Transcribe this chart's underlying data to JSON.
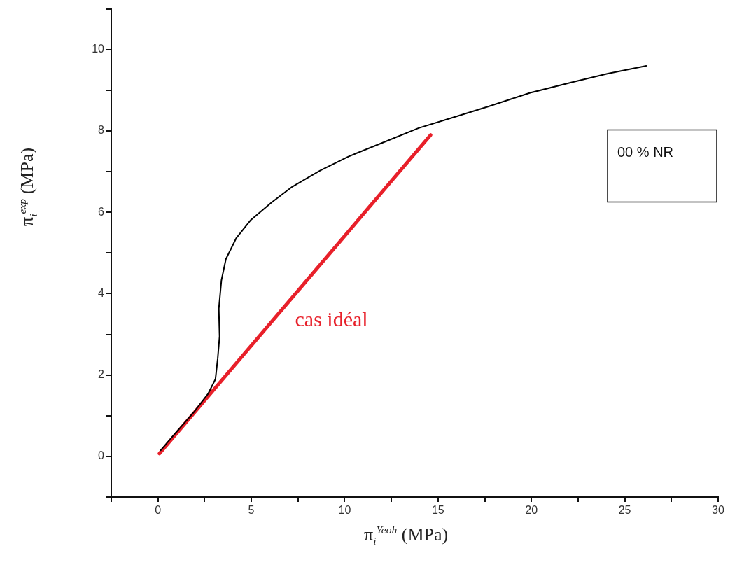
{
  "chart_data": {
    "type": "line",
    "xlabel": "π$_{i}$$^{Yeoh}$ (MPa)",
    "ylabel": "π$_{i}$$^{exp}$ (MPa)",
    "xlim": [
      -2.5,
      30
    ],
    "ylim": [
      -1,
      11
    ],
    "xticks": [
      {
        "value": -2.5,
        "label": null
      },
      0,
      {
        "value": 2.5,
        "label": null
      },
      5,
      {
        "value": 7.5,
        "label": null
      },
      10,
      {
        "value": 12.5,
        "label": null
      },
      15,
      {
        "value": 17.5,
        "label": null
      },
      20,
      {
        "value": 22.5,
        "label": null
      },
      25,
      {
        "value": 27.5,
        "label": null
      },
      30
    ],
    "yticks": [
      {
        "value": -1,
        "label": null
      },
      0,
      {
        "value": 1,
        "label": null
      },
      2,
      {
        "value": 3,
        "label": null
      },
      4,
      {
        "value": 5,
        "label": null
      },
      6,
      {
        "value": 7,
        "label": null
      },
      8,
      {
        "value": 9,
        "label": null
      },
      10,
      {
        "value": 11,
        "label": null
      }
    ],
    "grid": false,
    "legend": false,
    "annotations": [
      "00 % NR"
    ],
    "series": [
      {
        "color": "#000000",
        "x": [
          0.15,
          0.8,
          1.95,
          2.7,
          3.08,
          3.2,
          3.3,
          3.26,
          3.4,
          3.64,
          4.2,
          4.95,
          6.08,
          7.2,
          8.7,
          10.2,
          12.08,
          13.96,
          15.8,
          17.7,
          19.96,
          22.2,
          24.1,
          26.15
        ],
        "values": [
          0.15,
          0.5,
          1.1,
          1.55,
          1.9,
          2.4,
          2.95,
          3.63,
          4.33,
          4.85,
          5.37,
          5.8,
          6.24,
          6.63,
          7.03,
          7.37,
          7.72,
          8.07,
          8.33,
          8.6,
          8.94,
          9.2,
          9.41,
          9.6
        ]
      },
      {
        "name": "cas idéal",
        "color": "#e8202a",
        "x": [
          0.08,
          14.6
        ],
        "values": [
          0.07,
          7.9
        ]
      }
    ]
  }
}
